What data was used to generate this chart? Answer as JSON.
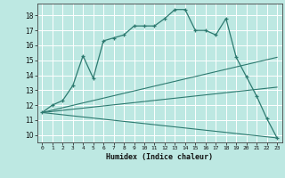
{
  "xlabel": "Humidex (Indice chaleur)",
  "bg_color": "#bde8e2",
  "line_color": "#2d7a70",
  "grid_color": "#ffffff",
  "xlim": [
    -0.5,
    23.5
  ],
  "ylim": [
    9.5,
    18.8
  ],
  "yticks": [
    10,
    11,
    12,
    13,
    14,
    15,
    16,
    17,
    18
  ],
  "xticks": [
    0,
    1,
    2,
    3,
    4,
    5,
    6,
    7,
    8,
    9,
    10,
    11,
    12,
    13,
    14,
    15,
    16,
    17,
    18,
    19,
    20,
    21,
    22,
    23
  ],
  "curve1_x": [
    0,
    1,
    2,
    3,
    4,
    5,
    6,
    7,
    8,
    9,
    10,
    11,
    12,
    13,
    14,
    15,
    16,
    17,
    18,
    19,
    20,
    21,
    22,
    23
  ],
  "curve1_y": [
    11.5,
    12.0,
    12.3,
    13.3,
    15.3,
    13.8,
    16.3,
    16.5,
    16.7,
    17.3,
    17.3,
    17.3,
    17.8,
    18.4,
    18.4,
    17.0,
    17.0,
    16.7,
    17.8,
    15.2,
    13.9,
    12.6,
    11.1,
    9.8
  ],
  "line1_x": [
    0,
    23
  ],
  "line1_y": [
    11.5,
    13.2
  ],
  "line2_x": [
    0,
    23
  ],
  "line2_y": [
    11.5,
    15.2
  ],
  "line3_x": [
    0,
    23
  ],
  "line3_y": [
    11.5,
    9.8
  ]
}
